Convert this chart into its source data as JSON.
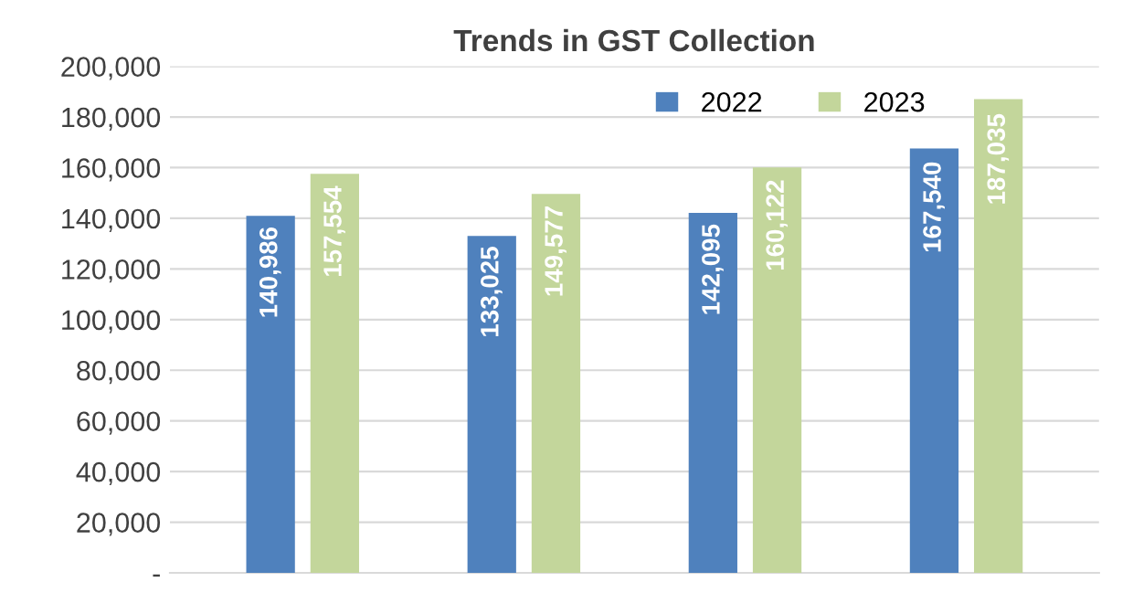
{
  "chart_data": {
    "type": "bar",
    "title": "Trends in GST Collection",
    "categories": [
      null,
      null,
      null,
      null
    ],
    "series": [
      {
        "name": "2022",
        "color": "#4f81bd",
        "values": [
          140986,
          133025,
          142095,
          167540
        ]
      },
      {
        "name": "2023",
        "color": "#c3d69b",
        "values": [
          157554,
          149577,
          160122,
          187035
        ]
      }
    ],
    "ylim": [
      0,
      200000
    ],
    "yticks": [
      {
        "value": 0,
        "label": "-"
      },
      {
        "value": 20000,
        "label": "20,000"
      },
      {
        "value": 40000,
        "label": "40,000"
      },
      {
        "value": 60000,
        "label": "60,000"
      },
      {
        "value": 80000,
        "label": "80,000"
      },
      {
        "value": 100000,
        "label": "100,000"
      },
      {
        "value": 120000,
        "label": "120,000"
      },
      {
        "value": 140000,
        "label": "140,000"
      },
      {
        "value": 160000,
        "label": "160,000"
      },
      {
        "value": 180000,
        "label": "180,000"
      },
      {
        "value": 200000,
        "label": "200,000"
      }
    ],
    "value_labels": [
      [
        "140,986",
        "133,025",
        "142,095",
        "167,540"
      ],
      [
        "157,554",
        "149,577",
        "160,122",
        "187,035"
      ]
    ],
    "grid": "y",
    "legend": "top right"
  }
}
